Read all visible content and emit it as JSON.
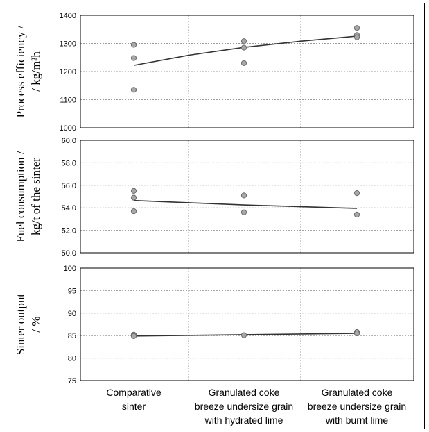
{
  "chart_data": [
    {
      "type": "scatter",
      "ylabel_lines": [
        "Process efficiency /",
        "/ kg/m²h"
      ],
      "ylim": [
        1000,
        1400
      ],
      "yticks": [
        1000,
        1100,
        1200,
        1300,
        1400
      ],
      "tick_labels": [
        "1000",
        "1100",
        "1200",
        "1300",
        "1400"
      ],
      "points": [
        {
          "x": 0,
          "y": 1295
        },
        {
          "x": 0,
          "y": 1248
        },
        {
          "x": 0,
          "y": 1135
        },
        {
          "x": 1,
          "y": 1308
        },
        {
          "x": 1,
          "y": 1285
        },
        {
          "x": 1,
          "y": 1230
        },
        {
          "x": 2,
          "y": 1355
        },
        {
          "x": 2,
          "y": 1330
        },
        {
          "x": 2,
          "y": 1322
        }
      ],
      "trend": [
        {
          "x": 0,
          "y": 1222
        },
        {
          "x": 0.5,
          "y": 1258
        },
        {
          "x": 1,
          "y": 1286
        },
        {
          "x": 1.5,
          "y": 1308
        },
        {
          "x": 2,
          "y": 1326
        }
      ],
      "grid": true
    },
    {
      "type": "scatter",
      "ylabel_lines": [
        "Fuel consumption /",
        "kg/t of the sinter"
      ],
      "ylim": [
        50,
        60
      ],
      "yticks": [
        50,
        52,
        54,
        56,
        58,
        60
      ],
      "tick_labels": [
        "50,0",
        "52,0",
        "54,0",
        "56,0",
        "58,0",
        "60,0"
      ],
      "points": [
        {
          "x": 0,
          "y": 55.5
        },
        {
          "x": 0,
          "y": 54.9
        },
        {
          "x": 0,
          "y": 53.7
        },
        {
          "x": 1,
          "y": 55.1
        },
        {
          "x": 1,
          "y": 53.6
        },
        {
          "x": 2,
          "y": 55.3
        },
        {
          "x": 2,
          "y": 53.4
        }
      ],
      "trend": [
        {
          "x": 0,
          "y": 54.65
        },
        {
          "x": 1,
          "y": 54.25
        },
        {
          "x": 2,
          "y": 53.95
        }
      ],
      "grid": true
    },
    {
      "type": "scatter",
      "ylabel_lines": [
        "Sinter output",
        "/ %"
      ],
      "ylim": [
        75,
        100
      ],
      "yticks": [
        75,
        80,
        85,
        90,
        95,
        100
      ],
      "tick_labels": [
        "75",
        "80",
        "85",
        "90",
        "95",
        "100"
      ],
      "points": [
        {
          "x": 0,
          "y": 85.2
        },
        {
          "x": 0,
          "y": 84.9
        },
        {
          "x": 1,
          "y": 85.1
        },
        {
          "x": 2,
          "y": 85.8
        },
        {
          "x": 2,
          "y": 85.5
        }
      ],
      "trend": [
        {
          "x": 0,
          "y": 84.9
        },
        {
          "x": 1,
          "y": 85.2
        },
        {
          "x": 2,
          "y": 85.5
        }
      ],
      "grid": true
    }
  ],
  "categories": [
    [
      "Comparative",
      "sinter"
    ],
    [
      "Granulated coke",
      "breeze undersize grain",
      "with hydrated lime"
    ],
    [
      "Granulated coke",
      "breeze undersize grain",
      "with burnt lime"
    ]
  ],
  "colors": {
    "point": "#a8a8a8",
    "point_stroke": "#6a6a6a",
    "grid": "#9a9a9a",
    "trend": "#333333"
  }
}
